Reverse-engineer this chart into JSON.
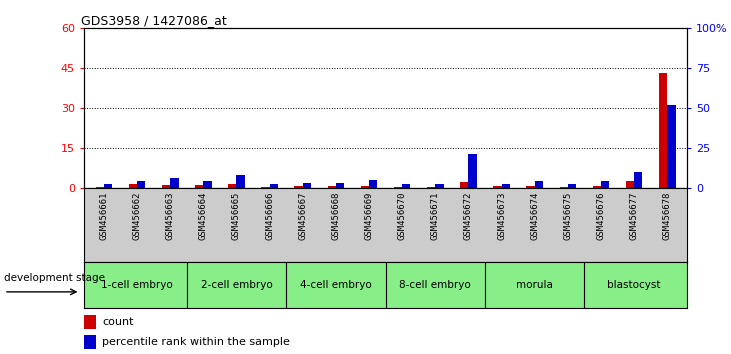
{
  "title": "GDS3958 / 1427086_at",
  "samples": [
    "GSM456661",
    "GSM456662",
    "GSM456663",
    "GSM456664",
    "GSM456665",
    "GSM456666",
    "GSM456667",
    "GSM456668",
    "GSM456669",
    "GSM456670",
    "GSM456671",
    "GSM456672",
    "GSM456673",
    "GSM456674",
    "GSM456675",
    "GSM456676",
    "GSM456677",
    "GSM456678"
  ],
  "count_values": [
    0.2,
    1.2,
    1.0,
    0.8,
    1.5,
    0.2,
    0.5,
    0.5,
    0.5,
    0.2,
    0.2,
    2.2,
    0.5,
    0.7,
    0.2,
    0.5,
    2.5,
    43.0
  ],
  "percentile_values": [
    2,
    4,
    6,
    4,
    8,
    2,
    3,
    3,
    5,
    2,
    2,
    21,
    2,
    4,
    2,
    4,
    10,
    52
  ],
  "stage_groups": [
    {
      "label": "1-cell embryo",
      "start": 0,
      "end": 3
    },
    {
      "label": "2-cell embryo",
      "start": 3,
      "end": 6
    },
    {
      "label": "4-cell embryo",
      "start": 6,
      "end": 9
    },
    {
      "label": "8-cell embryo",
      "start": 9,
      "end": 12
    },
    {
      "label": "morula",
      "start": 12,
      "end": 15
    },
    {
      "label": "blastocyst",
      "start": 15,
      "end": 18
    }
  ],
  "ylim_left": [
    0,
    60
  ],
  "ylim_right": [
    0,
    100
  ],
  "yticks_left": [
    0,
    15,
    30,
    45,
    60
  ],
  "yticks_right": [
    0,
    25,
    50,
    75,
    100
  ],
  "ytick_labels_right": [
    "0",
    "25",
    "50",
    "75",
    "100%"
  ],
  "bar_color_count": "#cc0000",
  "bar_color_pct": "#0000cc",
  "bar_width": 0.25,
  "grid_color": "black",
  "label_bg_color": "#cccccc",
  "stage_bg_color": "#88ee88",
  "development_stage_label": "development stage",
  "legend_count_label": "count",
  "legend_pct_label": "percentile rank within the sample"
}
